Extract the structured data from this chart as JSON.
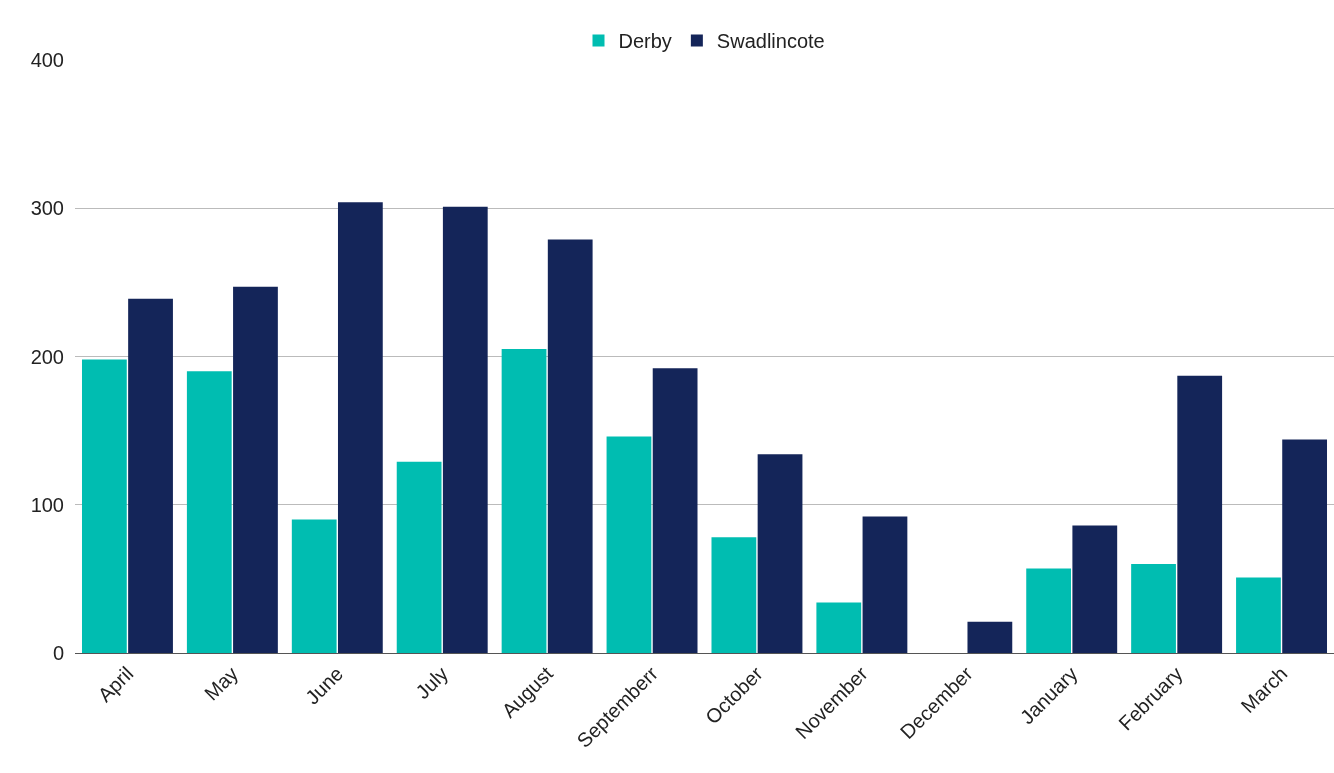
{
  "chart_data": {
    "type": "bar",
    "categories": [
      "April",
      "May",
      "June",
      "July",
      "August",
      "Septemberr",
      "October",
      "November",
      "December",
      "January",
      "February",
      "March"
    ],
    "series": [
      {
        "name": "Derby",
        "color": "#00bdb1",
        "values": [
          198,
          190,
          90,
          129,
          205,
          146,
          78,
          34,
          0,
          57,
          60,
          51
        ]
      },
      {
        "name": "Swadlincote",
        "color": "#142559",
        "values": [
          239,
          247,
          304,
          301,
          279,
          192,
          134,
          92,
          21,
          86,
          187,
          144
        ]
      }
    ],
    "ylim": [
      0,
      400
    ],
    "yticks": [
      0,
      100,
      200,
      300,
      400
    ],
    "grid": "y",
    "legend": "top"
  }
}
